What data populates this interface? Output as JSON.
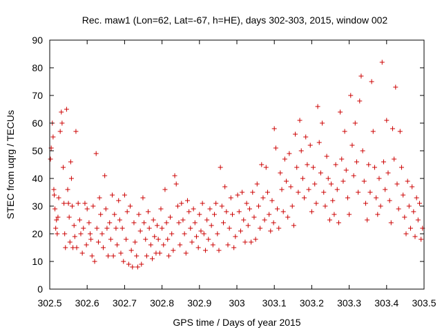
{
  "chart_data": {
    "type": "scatter",
    "title": "Rec. maw1 (Lon=62, Lat=-67, h=HE), days 302-303, 2015, window 002",
    "xlabel": "GPS time / Days of year 2015",
    "ylabel": "STEC from uqrg / TECUs",
    "xlim": [
      302.5,
      303.5
    ],
    "ylim": [
      0,
      90
    ],
    "xticks": [
      "302.5",
      "302.6",
      "302.7",
      "302.8",
      "302.9",
      "303",
      "303.1",
      "303.2",
      "303.3",
      "303.4",
      "303.5"
    ],
    "yticks": [
      "0",
      "10",
      "20",
      "30",
      "40",
      "50",
      "60",
      "70",
      "80",
      "90"
    ],
    "marker": "+",
    "color": "#cc0000",
    "grid": false,
    "legend": "none",
    "points": [
      [
        302.502,
        47
      ],
      [
        302.504,
        51
      ],
      [
        302.507,
        60
      ],
      [
        302.509,
        55
      ],
      [
        302.511,
        36
      ],
      [
        302.512,
        34
      ],
      [
        302.514,
        29
      ],
      [
        302.516,
        22
      ],
      [
        302.518,
        25
      ],
      [
        302.52,
        20
      ],
      [
        302.522,
        26
      ],
      [
        302.524,
        33
      ],
      [
        302.528,
        57
      ],
      [
        302.531,
        64
      ],
      [
        302.533,
        60
      ],
      [
        302.536,
        44
      ],
      [
        302.538,
        31
      ],
      [
        302.54,
        20
      ],
      [
        302.542,
        15
      ],
      [
        302.545,
        65
      ],
      [
        302.548,
        36
      ],
      [
        302.55,
        31
      ],
      [
        302.552,
        26
      ],
      [
        302.554,
        17
      ],
      [
        302.556,
        46
      ],
      [
        302.558,
        40
      ],
      [
        302.56,
        30
      ],
      [
        302.562,
        15
      ],
      [
        302.565,
        23
      ],
      [
        302.567,
        19
      ],
      [
        302.57,
        57
      ],
      [
        302.572,
        15
      ],
      [
        302.576,
        31
      ],
      [
        302.58,
        25
      ],
      [
        302.583,
        20
      ],
      [
        302.587,
        13
      ],
      [
        302.59,
        22
      ],
      [
        302.594,
        31
      ],
      [
        302.598,
        16
      ],
      [
        302.6,
        29
      ],
      [
        302.605,
        24
      ],
      [
        302.608,
        20
      ],
      [
        302.61,
        18
      ],
      [
        302.613,
        12
      ],
      [
        302.616,
        30
      ],
      [
        302.62,
        10
      ],
      [
        302.624,
        49
      ],
      [
        302.626,
        22
      ],
      [
        302.63,
        17
      ],
      [
        302.633,
        33
      ],
      [
        302.636,
        27
      ],
      [
        302.64,
        20
      ],
      [
        302.643,
        15
      ],
      [
        302.647,
        41
      ],
      [
        302.65,
        29
      ],
      [
        302.653,
        22
      ],
      [
        302.656,
        12
      ],
      [
        302.66,
        24
      ],
      [
        302.663,
        18
      ],
      [
        302.667,
        34
      ],
      [
        302.67,
        12
      ],
      [
        302.673,
        27
      ],
      [
        302.677,
        22
      ],
      [
        302.68,
        16
      ],
      [
        302.684,
        32
      ],
      [
        302.687,
        25
      ],
      [
        302.69,
        13
      ],
      [
        302.694,
        22
      ],
      [
        302.697,
        10
      ],
      [
        302.7,
        34
      ],
      [
        302.704,
        18
      ],
      [
        302.707,
        28
      ],
      [
        302.711,
        9
      ],
      [
        302.715,
        30
      ],
      [
        302.718,
        14
      ],
      [
        302.721,
        8
      ],
      [
        302.725,
        24
      ],
      [
        302.728,
        17
      ],
      [
        302.732,
        12
      ],
      [
        302.735,
        8
      ],
      [
        302.738,
        27
      ],
      [
        302.742,
        21
      ],
      [
        302.745,
        9
      ],
      [
        302.749,
        33
      ],
      [
        302.752,
        24
      ],
      [
        302.756,
        18
      ],
      [
        302.759,
        12
      ],
      [
        302.763,
        28
      ],
      [
        302.766,
        22
      ],
      [
        302.77,
        16
      ],
      [
        302.774,
        11
      ],
      [
        302.777,
        25
      ],
      [
        302.78,
        19
      ],
      [
        302.784,
        13
      ],
      [
        302.787,
        23
      ],
      [
        302.79,
        18
      ],
      [
        302.794,
        13
      ],
      [
        302.797,
        29
      ],
      [
        302.8,
        22
      ],
      [
        302.804,
        16
      ],
      [
        302.808,
        36
      ],
      [
        302.812,
        24
      ],
      [
        302.815,
        18
      ],
      [
        302.818,
        12
      ],
      [
        302.822,
        26
      ],
      [
        302.826,
        20
      ],
      [
        302.83,
        14
      ],
      [
        302.834,
        41
      ],
      [
        302.838,
        38
      ],
      [
        302.842,
        30
      ],
      [
        302.845,
        24
      ],
      [
        302.848,
        16
      ],
      [
        302.852,
        31
      ],
      [
        302.856,
        25
      ],
      [
        302.86,
        20
      ],
      [
        302.864,
        13
      ],
      [
        302.868,
        32
      ],
      [
        302.872,
        28
      ],
      [
        302.876,
        22
      ],
      [
        302.88,
        17
      ],
      [
        302.884,
        29
      ],
      [
        302.888,
        24
      ],
      [
        302.892,
        19
      ],
      [
        302.897,
        15
      ],
      [
        302.9,
        27
      ],
      [
        302.904,
        21
      ],
      [
        302.908,
        31
      ],
      [
        302.912,
        20
      ],
      [
        302.916,
        14
      ],
      [
        302.92,
        25
      ],
      [
        302.924,
        18
      ],
      [
        302.928,
        29
      ],
      [
        302.932,
        23
      ],
      [
        302.936,
        16
      ],
      [
        302.94,
        27
      ],
      [
        302.944,
        31
      ],
      [
        302.948,
        20
      ],
      [
        302.952,
        14
      ],
      [
        302.956,
        44
      ],
      [
        302.96,
        30
      ],
      [
        302.964,
        24
      ],
      [
        302.968,
        37
      ],
      [
        302.972,
        28
      ],
      [
        302.976,
        16
      ],
      [
        302.98,
        22
      ],
      [
        302.984,
        33
      ],
      [
        302.988,
        27
      ],
      [
        302.992,
        15
      ],
      [
        302.996,
        19
      ],
      [
        303.002,
        34
      ],
      [
        303.006,
        28
      ],
      [
        303.01,
        21
      ],
      [
        303.014,
        35
      ],
      [
        303.018,
        25
      ],
      [
        303.022,
        17
      ],
      [
        303.026,
        31
      ],
      [
        303.03,
        23
      ],
      [
        303.034,
        29
      ],
      [
        303.038,
        17
      ],
      [
        303.042,
        35
      ],
      [
        303.046,
        26
      ],
      [
        303.05,
        18
      ],
      [
        303.054,
        38
      ],
      [
        303.058,
        30
      ],
      [
        303.062,
        22
      ],
      [
        303.066,
        45
      ],
      [
        303.07,
        33
      ],
      [
        303.074,
        25
      ],
      [
        303.078,
        44
      ],
      [
        303.082,
        35
      ],
      [
        303.086,
        27
      ],
      [
        303.09,
        21
      ],
      [
        303.094,
        32
      ],
      [
        303.098,
        24
      ],
      [
        303.1,
        58
      ],
      [
        303.104,
        51
      ],
      [
        303.108,
        29
      ],
      [
        303.112,
        22
      ],
      [
        303.116,
        42
      ],
      [
        303.12,
        36
      ],
      [
        303.124,
        28
      ],
      [
        303.128,
        47
      ],
      [
        303.132,
        39
      ],
      [
        303.136,
        26
      ],
      [
        303.14,
        49
      ],
      [
        303.144,
        37
      ],
      [
        303.148,
        30
      ],
      [
        303.152,
        23
      ],
      [
        303.156,
        56
      ],
      [
        303.16,
        44
      ],
      [
        303.164,
        35
      ],
      [
        303.168,
        61
      ],
      [
        303.172,
        50
      ],
      [
        303.176,
        40
      ],
      [
        303.18,
        33
      ],
      [
        303.184,
        55
      ],
      [
        303.188,
        45
      ],
      [
        303.192,
        36
      ],
      [
        303.196,
        52
      ],
      [
        303.2,
        28
      ],
      [
        303.204,
        44
      ],
      [
        303.208,
        38
      ],
      [
        303.212,
        31
      ],
      [
        303.216,
        66
      ],
      [
        303.22,
        53
      ],
      [
        303.224,
        42
      ],
      [
        303.228,
        60
      ],
      [
        303.232,
        35
      ],
      [
        303.236,
        30
      ],
      [
        303.24,
        48
      ],
      [
        303.244,
        40
      ],
      [
        303.248,
        25
      ],
      [
        303.252,
        38
      ],
      [
        303.256,
        32
      ],
      [
        303.26,
        27
      ],
      [
        303.264,
        45
      ],
      [
        303.268,
        36
      ],
      [
        303.272,
        24
      ],
      [
        303.276,
        64
      ],
      [
        303.28,
        47
      ],
      [
        303.284,
        39
      ],
      [
        303.288,
        57
      ],
      [
        303.292,
        43
      ],
      [
        303.296,
        33
      ],
      [
        303.3,
        27
      ],
      [
        303.304,
        70
      ],
      [
        303.308,
        52
      ],
      [
        303.312,
        41
      ],
      [
        303.316,
        60
      ],
      [
        303.32,
        46
      ],
      [
        303.324,
        35
      ],
      [
        303.328,
        68
      ],
      [
        303.332,
        77
      ],
      [
        303.336,
        50
      ],
      [
        303.34,
        39
      ],
      [
        303.344,
        31
      ],
      [
        303.348,
        25
      ],
      [
        303.352,
        45
      ],
      [
        303.356,
        35
      ],
      [
        303.36,
        75
      ],
      [
        303.364,
        57
      ],
      [
        303.368,
        44
      ],
      [
        303.372,
        33
      ],
      [
        303.376,
        27
      ],
      [
        303.38,
        40
      ],
      [
        303.384,
        30
      ],
      [
        303.388,
        82
      ],
      [
        303.392,
        46
      ],
      [
        303.396,
        36
      ],
      [
        303.4,
        61
      ],
      [
        303.404,
        42
      ],
      [
        303.408,
        32
      ],
      [
        303.412,
        24
      ],
      [
        303.416,
        58
      ],
      [
        303.42,
        47
      ],
      [
        303.424,
        73
      ],
      [
        303.428,
        38
      ],
      [
        303.432,
        29
      ],
      [
        303.436,
        57
      ],
      [
        303.44,
        44
      ],
      [
        303.444,
        34
      ],
      [
        303.448,
        26
      ],
      [
        303.452,
        20
      ],
      [
        303.456,
        39
      ],
      [
        303.46,
        30
      ],
      [
        303.464,
        22
      ],
      [
        303.468,
        37
      ],
      [
        303.472,
        28
      ],
      [
        303.476,
        19
      ],
      [
        303.48,
        33
      ],
      [
        303.484,
        25
      ],
      [
        303.488,
        31
      ],
      [
        303.492,
        18
      ],
      [
        303.496,
        22
      ]
    ]
  }
}
